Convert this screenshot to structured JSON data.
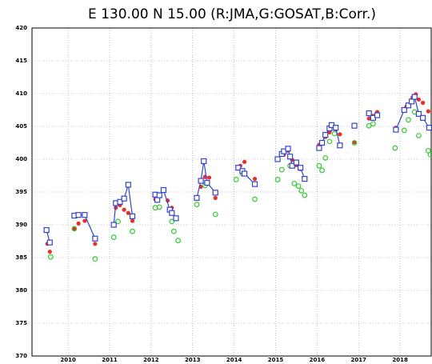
{
  "chart_data": {
    "type": "scatter",
    "title": "E 130.00 N 15.00 (R:JMA,G:GOSAT,B:Corr.)",
    "xlim": [
      2009.13,
      2018.75
    ],
    "xticks": [
      2010,
      2011,
      2012,
      2013,
      2014,
      2015,
      2016,
      2017,
      2018
    ],
    "ylim": [
      370,
      420
    ],
    "yticks": [
      370,
      375,
      380,
      385,
      390,
      395,
      400,
      405,
      410,
      415,
      420
    ],
    "grid": true,
    "series": [
      {
        "color": "#e8302a",
        "marker": "dot",
        "line": false,
        "x": [
          2009.5,
          2009.56,
          2010.15,
          2010.25,
          2010.4,
          2010.65,
          2011.15,
          2011.25,
          2011.35,
          2011.45,
          2011.55,
          2012.1,
          2012.2,
          2012.4,
          2012.5,
          2013.2,
          2013.3,
          2013.4,
          2013.55,
          2014.15,
          2014.25,
          2014.5,
          2015.2,
          2015.3,
          2015.4,
          2015.5,
          2015.6,
          2016.05,
          2016.2,
          2016.3,
          2016.45,
          2016.55,
          2016.9,
          2017.25,
          2017.35,
          2017.45,
          2017.9,
          2018.15,
          2018.3,
          2018.38,
          2018.45,
          2018.55,
          2018.68
        ],
        "values": [
          387.1,
          385.9,
          389.4,
          390.2,
          390.6,
          387.1,
          392.6,
          393.0,
          392.3,
          391.8,
          390.6,
          393.9,
          394.6,
          393.7,
          392.6,
          395.8,
          397.3,
          397.2,
          394.1,
          399.0,
          399.6,
          397.0,
          400.7,
          401.3,
          399.9,
          399.1,
          398.5,
          402.2,
          403.4,
          404.1,
          404.5,
          403.8,
          402.6,
          406.2,
          406.6,
          407.2,
          404.8,
          408.0,
          409.4,
          409.9,
          409.1,
          408.6,
          407.3
        ]
      },
      {
        "color": "#33cc33",
        "marker": "circle",
        "line": false,
        "x": [
          2009.58,
          2010.15,
          2010.65,
          2011.1,
          2011.2,
          2011.55,
          2012.1,
          2012.2,
          2012.5,
          2012.55,
          2012.65,
          2013.1,
          2013.3,
          2013.55,
          2014.05,
          2014.2,
          2014.5,
          2015.05,
          2015.15,
          2015.35,
          2015.45,
          2015.55,
          2015.62,
          2015.7,
          2016.05,
          2016.12,
          2016.2,
          2016.3,
          2016.42,
          2016.9,
          2017.25,
          2017.35,
          2017.88,
          2018.1,
          2018.2,
          2018.35,
          2018.45,
          2018.68,
          2018.73
        ],
        "values": [
          385.1,
          389.4,
          384.8,
          388.1,
          390.5,
          389.0,
          392.6,
          392.7,
          390.5,
          389.0,
          387.6,
          393.1,
          396.0,
          391.6,
          396.9,
          397.8,
          393.9,
          396.9,
          398.4,
          399.0,
          396.3,
          395.9,
          395.2,
          394.5,
          399.0,
          398.3,
          400.2,
          402.7,
          403.9,
          402.5,
          405.1,
          405.4,
          401.7,
          404.4,
          406.0,
          407.2,
          403.6,
          401.3,
          400.7
        ]
      },
      {
        "color": "#3344cc",
        "marker": "square",
        "line": true,
        "x": [
          2009.48,
          2009.56,
          2010.15,
          2010.25,
          2010.4,
          2010.65,
          2011.1,
          2011.15,
          2011.25,
          2011.35,
          2011.45,
          2011.55,
          2012.1,
          2012.15,
          2012.2,
          2012.3,
          2012.45,
          2012.5,
          2012.6,
          2013.1,
          2013.2,
          2013.27,
          2013.35,
          2013.55,
          2014.1,
          2014.2,
          2014.25,
          2014.5,
          2015.05,
          2015.15,
          2015.2,
          2015.3,
          2015.35,
          2015.4,
          2015.5,
          2015.6,
          2015.7,
          2016.05,
          2016.12,
          2016.2,
          2016.3,
          2016.35,
          2016.45,
          2016.55,
          2016.9,
          2017.25,
          2017.35,
          2017.45,
          2017.9,
          2018.1,
          2018.2,
          2018.28,
          2018.35,
          2018.45,
          2018.55,
          2018.7
        ],
        "values": [
          389.2,
          387.3,
          391.4,
          391.5,
          391.5,
          387.9,
          390.0,
          393.3,
          393.5,
          394.0,
          396.1,
          391.3,
          394.6,
          393.8,
          394.5,
          395.3,
          392.3,
          391.8,
          391.0,
          394.1,
          396.7,
          399.7,
          396.4,
          394.9,
          398.7,
          398.2,
          397.8,
          396.2,
          400.0,
          400.8,
          401.2,
          401.6,
          400.4,
          399.0,
          399.5,
          398.7,
          397.0,
          401.7,
          402.5,
          403.7,
          404.7,
          405.2,
          404.8,
          402.1,
          405.1,
          407.0,
          406.3,
          406.7,
          404.5,
          407.5,
          408.2,
          408.8,
          409.5,
          406.9,
          406.3,
          404.8
        ]
      }
    ]
  }
}
